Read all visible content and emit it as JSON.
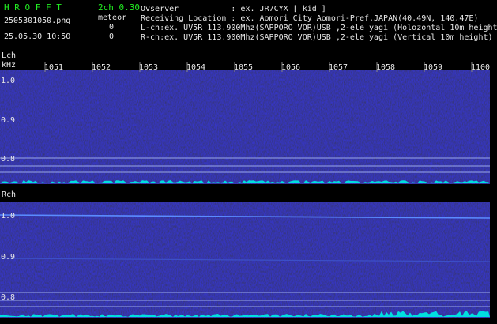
{
  "header": {
    "app_title": "H R O F F T",
    "mode": "2ch 0.30",
    "filename": "2505301050.png",
    "meteor_label": "meteor",
    "datetime": "25.05.30 10:50",
    "lch_count": "0",
    "rch_count": "0",
    "info": [
      "Ovserver           : ex. JR7CYX [ kid ]",
      "Receiving Location : ex. Aomori City Aomori-Pref.JAPAN(40.49N, 140.47E)",
      "L-ch:ex. UV5R 113.900Mhz(SAPPORO VOR)USB ,2-ele yagi (Holozontal 10m height",
      "R-ch:ex. UV5R 113.900Mhz(SAPPORO VOR)USB ,2-ele yagi (Vertical 10m height)"
    ]
  },
  "time_labels": [
    "1051",
    "1052",
    "1053",
    "1054",
    "1055",
    "1056",
    "1057",
    "1058",
    "1059",
    "1100"
  ],
  "panels": [
    {
      "label": "Lch",
      "unit": "kHz",
      "freq_labels": [
        "1.0",
        "0.9",
        "0.8"
      ]
    },
    {
      "label": "Rch",
      "freq_labels": [
        "1.0",
        "0.9",
        "0.8"
      ]
    }
  ]
}
